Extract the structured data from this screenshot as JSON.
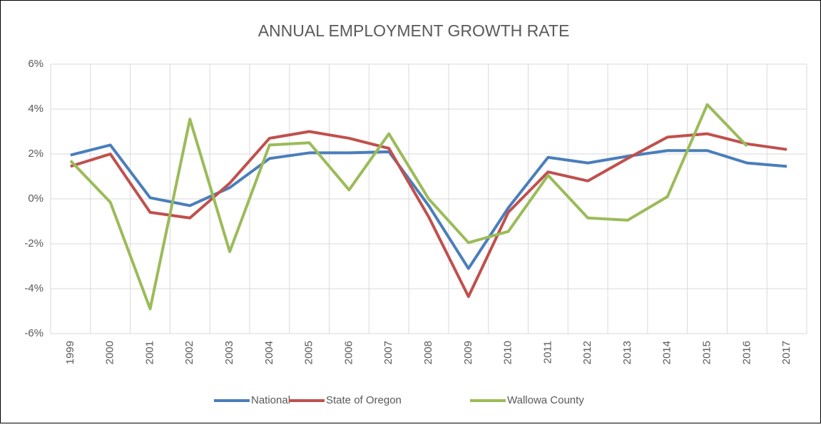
{
  "chart_data": {
    "type": "line",
    "title": "ANNUAL EMPLOYMENT GROWTH RATE",
    "categories": [
      "1999",
      "2000",
      "2001",
      "2002",
      "2003",
      "2004",
      "2005",
      "2006",
      "2007",
      "2008",
      "2009",
      "2010",
      "2011",
      "2012",
      "2013",
      "2014",
      "2015",
      "2016",
      "2017"
    ],
    "series": [
      {
        "name": "National",
        "color": "#4a7ebb",
        "values": [
          1.95,
          2.4,
          0.05,
          -0.3,
          0.5,
          1.8,
          2.05,
          2.05,
          2.1,
          -0.3,
          -3.1,
          -0.4,
          1.85,
          1.6,
          1.9,
          2.15,
          2.15,
          1.6,
          1.45
        ]
      },
      {
        "name": "State of Oregon",
        "color": "#c0504d",
        "values": [
          1.45,
          2.0,
          -0.6,
          -0.85,
          0.7,
          2.7,
          3.0,
          2.7,
          2.25,
          -0.8,
          -4.35,
          -0.6,
          1.2,
          0.8,
          1.8,
          2.75,
          2.9,
          2.45,
          2.2
        ]
      },
      {
        "name": "Wallowa County",
        "color": "#9bbb59",
        "values": [
          1.7,
          -0.15,
          -4.9,
          3.55,
          -2.35,
          2.4,
          2.5,
          0.4,
          2.9,
          0.0,
          -1.95,
          -1.45,
          1.05,
          -0.85,
          -0.95,
          0.1,
          4.2,
          2.35,
          null
        ]
      }
    ],
    "ylim": [
      -6,
      6
    ],
    "yticks": [
      {
        "value": -6,
        "label": "-6%"
      },
      {
        "value": -4,
        "label": "-4%"
      },
      {
        "value": -2,
        "label": "-2%"
      },
      {
        "value": 0,
        "label": "0%"
      },
      {
        "value": 2,
        "label": "2%"
      },
      {
        "value": 4,
        "label": "4%"
      },
      {
        "value": 6,
        "label": "6%"
      }
    ],
    "grid": true,
    "legend": "bottom"
  }
}
